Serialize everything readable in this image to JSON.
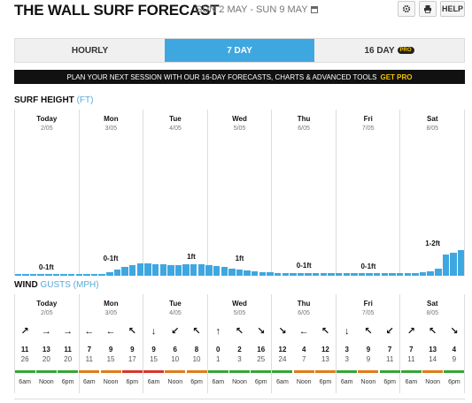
{
  "header": {
    "title": "THE WALL SURF FORECAST",
    "dates": "SUN 2 MAY - SUN 9 MAY",
    "settings_icon": "gear-icon",
    "print_icon": "print-icon",
    "help_label": "HELP"
  },
  "tabs": [
    {
      "label": "HOURLY",
      "active": false,
      "pro": ""
    },
    {
      "label": "7 DAY",
      "active": true,
      "pro": ""
    },
    {
      "label": "16 DAY",
      "active": false,
      "pro": "PRO"
    }
  ],
  "promo": {
    "text": "PLAN YOUR NEXT SESSION WITH OUR 16-DAY FORECASTS, CHARTS & ADVANCED TOOLS",
    "link": "GET PRO"
  },
  "surf": {
    "label": "SURF HEIGHT",
    "unit": "(FT)"
  },
  "wind": {
    "label": "WIND",
    "unit": "GUSTS (MPH)"
  },
  "days": [
    {
      "name": "Today",
      "date": "2/05"
    },
    {
      "name": "Mon",
      "date": "3/05"
    },
    {
      "name": "Tue",
      "date": "4/05"
    },
    {
      "name": "Wed",
      "date": "5/05"
    },
    {
      "name": "Thu",
      "date": "6/05"
    },
    {
      "name": "Fri",
      "date": "7/05"
    },
    {
      "name": "Sat",
      "date": "8/05"
    }
  ],
  "chart_data": {
    "type": "bar",
    "unit": "ft",
    "values": [
      0.1,
      0.1,
      0.1,
      0.1,
      0.1,
      0.1,
      0.1,
      0.1,
      0.1,
      0.1,
      0.1,
      0.1,
      0.2,
      0.3,
      0.45,
      0.55,
      0.65,
      0.65,
      0.6,
      0.6,
      0.55,
      0.55,
      0.6,
      0.6,
      0.6,
      0.55,
      0.5,
      0.45,
      0.35,
      0.3,
      0.28,
      0.25,
      0.2,
      0.18,
      0.15,
      0.15,
      0.15,
      0.15,
      0.15,
      0.15,
      0.15,
      0.15,
      0.15,
      0.15,
      0.15,
      0.15,
      0.15,
      0.15,
      0.15,
      0.15,
      0.15,
      0.15,
      0.15,
      0.2,
      0.25,
      0.35,
      1.1,
      1.2,
      1.3
    ],
    "day_labels": [
      "0-1ft",
      "0-1ft",
      "1ft",
      "1ft",
      "0-1ft",
      "0-1ft",
      "1-2ft"
    ]
  },
  "wind_forecast": [
    {
      "dir": "↗",
      "wind": "11",
      "gust": "26",
      "color": "#37a537"
    },
    {
      "dir": "→",
      "wind": "13",
      "gust": "20",
      "color": "#37a537"
    },
    {
      "dir": "→",
      "wind": "11",
      "gust": "20",
      "color": "#37a537"
    },
    {
      "dir": "←",
      "wind": "7",
      "gust": "11",
      "color": "#e07b1a"
    },
    {
      "dir": "←",
      "wind": "9",
      "gust": "15",
      "color": "#e07b1a"
    },
    {
      "dir": "↖",
      "wind": "9",
      "gust": "17",
      "color": "#d9362b"
    },
    {
      "dir": "↓",
      "wind": "9",
      "gust": "15",
      "color": "#d9362b"
    },
    {
      "dir": "↙",
      "wind": "6",
      "gust": "10",
      "color": "#e07b1a"
    },
    {
      "dir": "↖",
      "wind": "8",
      "gust": "10",
      "color": "#e07b1a"
    },
    {
      "dir": "↑",
      "wind": "0",
      "gust": "1",
      "color": "#37a537"
    },
    {
      "dir": "↖",
      "wind": "2",
      "gust": "3",
      "color": "#37a537"
    },
    {
      "dir": "↘",
      "wind": "16",
      "gust": "25",
      "color": "#37a537"
    },
    {
      "dir": "↘",
      "wind": "12",
      "gust": "24",
      "color": "#37a537"
    },
    {
      "dir": "←",
      "wind": "4",
      "gust": "7",
      "color": "#e07b1a"
    },
    {
      "dir": "↖",
      "wind": "12",
      "gust": "13",
      "color": "#e07b1a"
    },
    {
      "dir": "↓",
      "wind": "3",
      "gust": "3",
      "color": "#37a537"
    },
    {
      "dir": "↖",
      "wind": "9",
      "gust": "9",
      "color": "#e07b1a"
    },
    {
      "dir": "↙",
      "wind": "7",
      "gust": "11",
      "color": "#37a537"
    },
    {
      "dir": "↗",
      "wind": "7",
      "gust": "11",
      "color": "#37a537"
    },
    {
      "dir": "↖",
      "wind": "13",
      "gust": "14",
      "color": "#e07b1a"
    },
    {
      "dir": "↘",
      "wind": "4",
      "gust": "9",
      "color": "#37a537"
    }
  ],
  "times": [
    "6am",
    "Noon",
    "6pm"
  ]
}
